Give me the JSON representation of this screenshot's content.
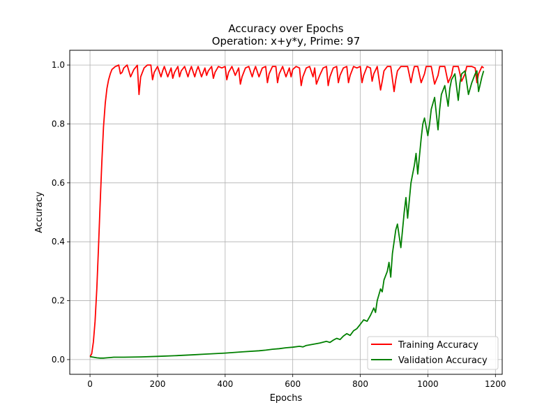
{
  "chart_data": {
    "type": "line",
    "title": "Accuracy over Epochs",
    "subtitle": "Operation: x+y*y, Prime: 97",
    "xlabel": "Epochs",
    "ylabel": "Accuracy",
    "xlim": [
      -60,
      1220
    ],
    "ylim": [
      -0.05,
      1.05
    ],
    "xticks": [
      0,
      200,
      400,
      600,
      800,
      1000,
      1200
    ],
    "yticks": [
      0.0,
      0.2,
      0.4,
      0.6,
      0.8,
      1.0
    ],
    "xtick_labels": [
      "0",
      "200",
      "400",
      "600",
      "800",
      "1000",
      "1200"
    ],
    "ytick_labels": [
      "0.0",
      "0.2",
      "0.4",
      "0.6",
      "0.8",
      "1.0"
    ],
    "grid": true,
    "legend_position": "lower-right",
    "series": [
      {
        "name": "Training Accuracy",
        "color": "#ff0000",
        "x": [
          0,
          5,
          10,
          15,
          20,
          25,
          30,
          35,
          40,
          45,
          50,
          55,
          60,
          65,
          70,
          75,
          80,
          85,
          90,
          95,
          100,
          110,
          120,
          130,
          140,
          145,
          150,
          160,
          170,
          180,
          185,
          190,
          200,
          210,
          215,
          220,
          230,
          240,
          245,
          250,
          260,
          265,
          270,
          280,
          290,
          295,
          300,
          310,
          315,
          320,
          330,
          340,
          345,
          350,
          360,
          365,
          370,
          380,
          390,
          400,
          405,
          410,
          420,
          430,
          440,
          445,
          450,
          460,
          470,
          480,
          485,
          490,
          500,
          510,
          520,
          525,
          530,
          540,
          550,
          555,
          560,
          570,
          580,
          590,
          595,
          600,
          610,
          620,
          625,
          630,
          640,
          650,
          660,
          665,
          670,
          680,
          690,
          700,
          705,
          710,
          720,
          730,
          735,
          740,
          750,
          760,
          765,
          770,
          780,
          790,
          800,
          805,
          810,
          820,
          830,
          835,
          840,
          850,
          860,
          865,
          870,
          880,
          890,
          900,
          905,
          910,
          920,
          930,
          940,
          950,
          955,
          960,
          970,
          980,
          990,
          995,
          1000,
          1010,
          1020,
          1030,
          1035,
          1040,
          1050,
          1060,
          1070,
          1075,
          1080,
          1090,
          1100,
          1110,
          1115,
          1120,
          1130,
          1140,
          1145,
          1150,
          1160,
          1165
        ],
        "values": [
          0.01,
          0.02,
          0.06,
          0.13,
          0.24,
          0.38,
          0.53,
          0.67,
          0.79,
          0.87,
          0.92,
          0.95,
          0.97,
          0.985,
          0.99,
          0.995,
          0.997,
          1.0,
          0.97,
          0.975,
          0.99,
          1.0,
          0.96,
          0.985,
          0.999,
          0.9,
          0.96,
          0.99,
          1.0,
          1.0,
          0.95,
          0.975,
          0.995,
          0.96,
          0.98,
          0.995,
          0.96,
          0.99,
          0.955,
          0.975,
          0.995,
          0.96,
          0.98,
          0.995,
          0.96,
          0.98,
          0.995,
          0.96,
          0.98,
          0.995,
          0.96,
          0.99,
          0.965,
          0.98,
          0.995,
          0.955,
          0.975,
          0.995,
          0.99,
          0.995,
          0.95,
          0.975,
          0.995,
          0.965,
          0.99,
          0.935,
          0.96,
          0.99,
          0.995,
          0.96,
          0.98,
          0.995,
          0.96,
          0.99,
          0.995,
          0.94,
          0.97,
          0.995,
          0.995,
          0.94,
          0.97,
          0.995,
          0.96,
          0.99,
          0.96,
          0.985,
          0.995,
          0.99,
          0.93,
          0.96,
          0.99,
          0.995,
          0.96,
          0.99,
          0.935,
          0.965,
          0.99,
          0.995,
          0.93,
          0.96,
          0.99,
          0.995,
          0.94,
          0.965,
          0.99,
          0.995,
          0.94,
          0.965,
          0.995,
          0.99,
          0.995,
          0.94,
          0.965,
          0.995,
          0.99,
          0.945,
          0.97,
          0.995,
          0.915,
          0.945,
          0.98,
          0.995,
          0.995,
          0.91,
          0.95,
          0.98,
          0.995,
          0.995,
          0.995,
          0.94,
          0.97,
          0.995,
          0.995,
          0.94,
          0.97,
          0.995,
          0.995,
          0.995,
          0.935,
          0.965,
          0.995,
          0.995,
          0.995,
          0.94,
          0.965,
          0.995,
          0.995,
          0.995,
          0.945,
          0.97,
          0.995,
          0.995,
          0.995,
          0.99,
          0.94,
          0.97,
          0.995,
          0.99
        ]
      },
      {
        "name": "Validation Accuracy",
        "color": "#008000",
        "x": [
          0,
          10,
          20,
          30,
          40,
          50,
          60,
          70,
          80,
          90,
          100,
          150,
          200,
          250,
          300,
          350,
          400,
          450,
          500,
          520,
          540,
          560,
          580,
          600,
          620,
          630,
          640,
          660,
          680,
          700,
          710,
          720,
          730,
          740,
          750,
          760,
          770,
          780,
          790,
          800,
          810,
          820,
          830,
          840,
          845,
          850,
          860,
          865,
          870,
          880,
          885,
          890,
          895,
          900,
          905,
          910,
          920,
          930,
          935,
          940,
          950,
          960,
          965,
          970,
          980,
          985,
          990,
          1000,
          1005,
          1010,
          1020,
          1030,
          1035,
          1040,
          1050,
          1060,
          1065,
          1070,
          1080,
          1090,
          1095,
          1100,
          1110,
          1120,
          1130,
          1140,
          1145,
          1150,
          1160,
          1165
        ],
        "values": [
          0.01,
          0.008,
          0.006,
          0.005,
          0.005,
          0.006,
          0.007,
          0.008,
          0.008,
          0.008,
          0.008,
          0.009,
          0.011,
          0.013,
          0.016,
          0.019,
          0.022,
          0.026,
          0.03,
          0.032,
          0.035,
          0.037,
          0.04,
          0.042,
          0.045,
          0.043,
          0.048,
          0.052,
          0.056,
          0.062,
          0.058,
          0.066,
          0.072,
          0.068,
          0.08,
          0.088,
          0.082,
          0.098,
          0.105,
          0.12,
          0.135,
          0.13,
          0.15,
          0.175,
          0.16,
          0.2,
          0.24,
          0.23,
          0.27,
          0.3,
          0.33,
          0.28,
          0.36,
          0.4,
          0.44,
          0.46,
          0.38,
          0.5,
          0.55,
          0.48,
          0.6,
          0.66,
          0.7,
          0.63,
          0.75,
          0.8,
          0.82,
          0.76,
          0.8,
          0.85,
          0.89,
          0.78,
          0.85,
          0.9,
          0.93,
          0.86,
          0.92,
          0.95,
          0.97,
          0.88,
          0.94,
          0.97,
          0.98,
          0.9,
          0.94,
          0.97,
          0.98,
          0.91,
          0.96,
          0.98
        ]
      }
    ]
  }
}
